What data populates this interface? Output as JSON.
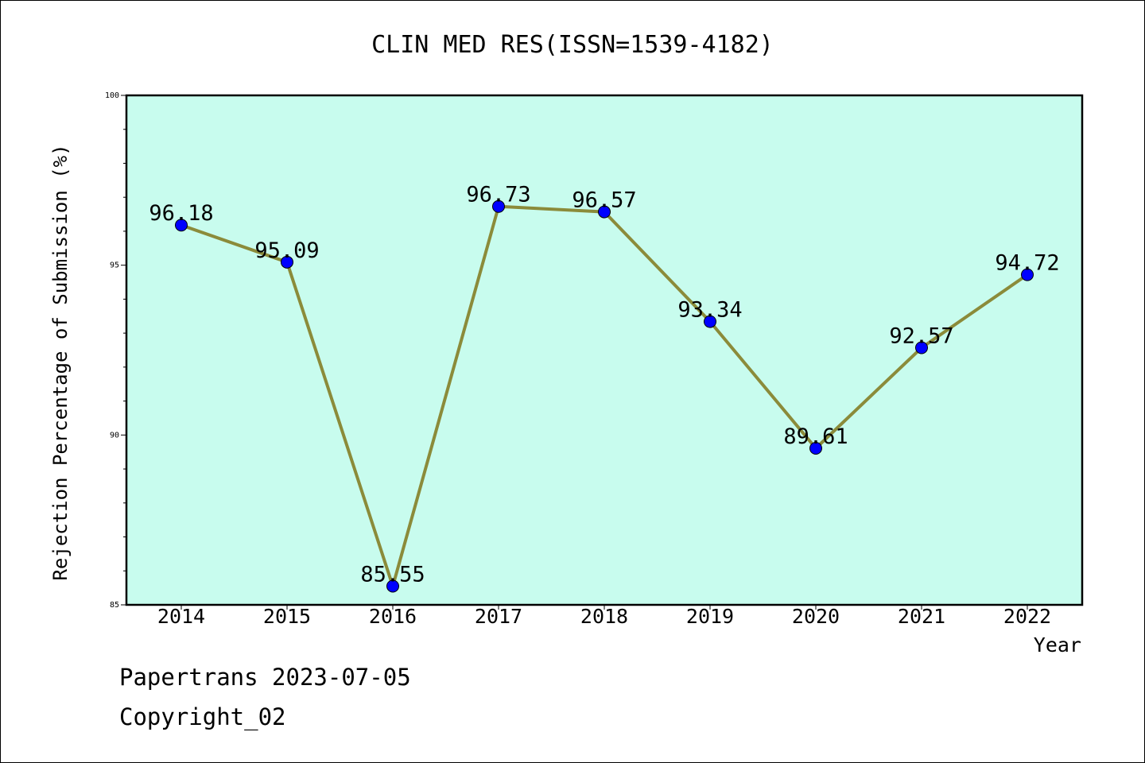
{
  "chart_data": {
    "type": "line",
    "title": "CLIN MED RES(ISSN=1539-4182)",
    "xlabel": "Year",
    "ylabel": "Rejection Percentage of Submission (%)",
    "ylim": [
      85,
      100
    ],
    "y_ticks": [
      85,
      90,
      95,
      100
    ],
    "grid": false,
    "categories": [
      "2014",
      "2015",
      "2016",
      "2017",
      "2018",
      "2019",
      "2020",
      "2021",
      "2022"
    ],
    "series": [
      {
        "values": [
          96.18,
          95.09,
          85.55,
          96.73,
          96.57,
          93.34,
          89.61,
          92.57,
          94.72
        ],
        "labels": [
          "96.18",
          "95.09",
          "85.55",
          "96.73",
          "96.57",
          "93.34",
          "89.61",
          "92.57",
          "94.72"
        ]
      }
    ],
    "colors": {
      "plot_background": "#c8fcee",
      "line": "#8b8b3a",
      "marker": "#0000ff"
    }
  },
  "footer": {
    "line1": "Papertrans 2023-07-05",
    "line2": "Copyright_02"
  }
}
